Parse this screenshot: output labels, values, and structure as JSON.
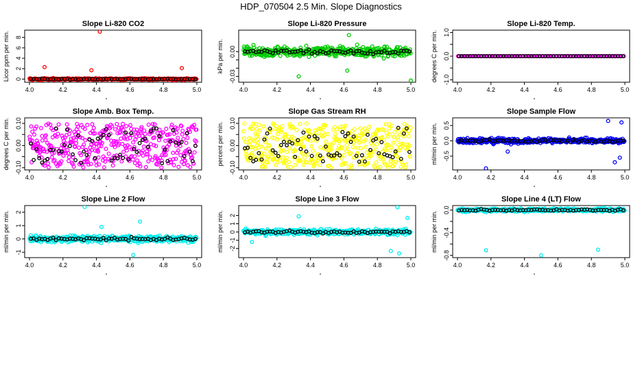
{
  "title": "HDP_070504  2.5 Min. Slope Diagnostics",
  "chart_data": [
    {
      "type": "scatter",
      "title": "Slope Li-820 CO2",
      "ylabel": "Licor ppm per min.",
      "xlim": [
        4.0,
        5.0
      ],
      "ylim": [
        -0.6,
        9.4
      ],
      "xticks": [
        4.0,
        4.2,
        4.4,
        4.6,
        4.8,
        5.0
      ],
      "yticks": [
        0,
        2,
        4,
        6,
        8
      ],
      "color": "#ff0000",
      "spread": 0.3,
      "outliers": [
        [
          4.42,
          9.1
        ],
        [
          4.09,
          2.3
        ],
        [
          4.37,
          1.7
        ],
        [
          4.91,
          2.1
        ],
        [
          4.87,
          -0.3
        ]
      ]
    },
    {
      "type": "scatter",
      "title": "Slope Li-820 Pressure",
      "ylabel": "kPa per min.",
      "xlim": [
        4.0,
        5.0
      ],
      "ylim": [
        -0.037,
        0.026
      ],
      "xticks": [
        4.0,
        4.2,
        4.4,
        4.6,
        4.8,
        5.0
      ],
      "yticks": [
        0.0,
        -0.01,
        -0.02,
        -0.03
      ],
      "ytick_labels": [
        "0.00",
        "",
        "",
        "-0.03"
      ],
      "color": "#00cc00",
      "spread": 0.011,
      "outliers": [
        [
          4.33,
          -0.03
        ],
        [
          4.63,
          0.02
        ],
        [
          4.62,
          -0.023
        ],
        [
          5.0,
          -0.035
        ]
      ]
    },
    {
      "type": "scatter",
      "title": "Slope Li-820 Temp.",
      "ylabel": "degrees C per min.",
      "xlim": [
        4.0,
        5.0
      ],
      "ylim": [
        -1.1,
        1.1
      ],
      "xticks": [
        4.0,
        4.2,
        4.4,
        4.6,
        4.8,
        5.0
      ],
      "yticks": [
        1.0,
        0.5,
        0.0,
        -0.5,
        -1.0
      ],
      "ytick_labels": [
        "1.0",
        "",
        "0.0",
        "",
        "-1.0"
      ],
      "color": "#ff00ff",
      "spread": 0.0,
      "outliers": []
    },
    {
      "type": "scatter",
      "title": "Slope Amb. Box Temp.",
      "ylabel": "degrees C per min.",
      "xlim": [
        4.0,
        5.0
      ],
      "ylim": [
        -0.11,
        0.125
      ],
      "xticks": [
        4.0,
        4.2,
        4.4,
        4.6,
        4.8,
        5.0
      ],
      "yticks": [
        0.1,
        0.05,
        0.0,
        -0.05,
        -0.1
      ],
      "ytick_labels": [
        "0.10",
        "",
        "0.00",
        "",
        "-0.10"
      ],
      "color": "#ff00ff",
      "spread": 0.1,
      "outliers": []
    },
    {
      "type": "scatter",
      "title": "Slope Gas Stream RH",
      "ylabel": "percent per min.",
      "xlim": [
        4.0,
        5.0
      ],
      "ylim": [
        -0.11,
        0.125
      ],
      "xticks": [
        4.0,
        4.2,
        4.4,
        4.6,
        4.8,
        5.0
      ],
      "yticks": [
        0.1,
        0.05,
        0.0,
        -0.05,
        -0.1
      ],
      "ytick_labels": [
        "0.10",
        "",
        "0.00",
        "",
        "-0.10"
      ],
      "color": "#ffff00",
      "spread": 0.1,
      "outliers": []
    },
    {
      "type": "scatter",
      "title": "Slope Sample Flow",
      "ylabel": "ml/min per min.",
      "xlim": [
        4.0,
        5.0
      ],
      "ylim": [
        -0.95,
        0.75
      ],
      "xticks": [
        4.0,
        4.2,
        4.4,
        4.6,
        4.8,
        5.0
      ],
      "yticks": [
        0.5,
        0.0,
        -0.5
      ],
      "ytick_labels": [
        "0.5",
        "0.0",
        "-0.5"
      ],
      "color": "#0000ff",
      "spread": 0.16,
      "outliers": [
        [
          4.17,
          -0.9
        ],
        [
          4.3,
          -0.35
        ],
        [
          4.9,
          0.65
        ],
        [
          4.98,
          0.6
        ],
        [
          4.94,
          -0.7
        ],
        [
          4.97,
          -0.55
        ]
      ]
    },
    {
      "type": "scatter",
      "title": "Slope Line 2 Flow",
      "ylabel": "ml/min per min.",
      "xlim": [
        4.0,
        5.0
      ],
      "ylim": [
        -1.4,
        2.5
      ],
      "xticks": [
        4.0,
        4.2,
        4.4,
        4.6,
        4.8,
        5.0
      ],
      "yticks": [
        2,
        1,
        0,
        -1
      ],
      "ytick_labels": [
        "2",
        "1",
        "0",
        "-1"
      ],
      "color": "#00eeee",
      "spread": 0.45,
      "outliers": [
        [
          4.33,
          2.4
        ],
        [
          4.66,
          1.3
        ],
        [
          4.62,
          -1.2
        ],
        [
          4.43,
          0.9
        ]
      ]
    },
    {
      "type": "scatter",
      "title": "Slope Line 3 Flow",
      "ylabel": "ml/min per min.",
      "xlim": [
        4.0,
        5.0
      ],
      "ylim": [
        -3.1,
        3.2
      ],
      "xticks": [
        4.0,
        4.2,
        4.4,
        4.6,
        4.8,
        5.0
      ],
      "yticks": [
        2,
        1,
        0,
        -1,
        -2
      ],
      "ytick_labels": [
        "2",
        "1",
        "0",
        "-1",
        "-2"
      ],
      "color": "#00eeee",
      "spread": 0.6,
      "outliers": [
        [
          4.33,
          1.9
        ],
        [
          4.92,
          3.0
        ],
        [
          4.88,
          -2.3
        ],
        [
          4.93,
          -2.6
        ],
        [
          4.98,
          1.7
        ],
        [
          4.05,
          -1.2
        ]
      ]
    },
    {
      "type": "scatter",
      "title": "Slope Line 4 (LT) Flow",
      "ylabel": "ml/min per min.",
      "xlim": [
        4.0,
        5.0
      ],
      "ylim": [
        -0.84,
        0.08
      ],
      "xticks": [
        4.0,
        4.2,
        4.4,
        4.6,
        4.8,
        5.0
      ],
      "yticks": [
        0.0,
        -0.2,
        -0.4,
        -0.6,
        -0.8
      ],
      "ytick_labels": [
        "0.0",
        "",
        "-0.4",
        "",
        "-0.8"
      ],
      "color": "#00eeee",
      "spread": 0.055,
      "outliers": [
        [
          4.17,
          -0.71
        ],
        [
          4.5,
          -0.8
        ],
        [
          4.84,
          -0.7
        ]
      ]
    }
  ]
}
